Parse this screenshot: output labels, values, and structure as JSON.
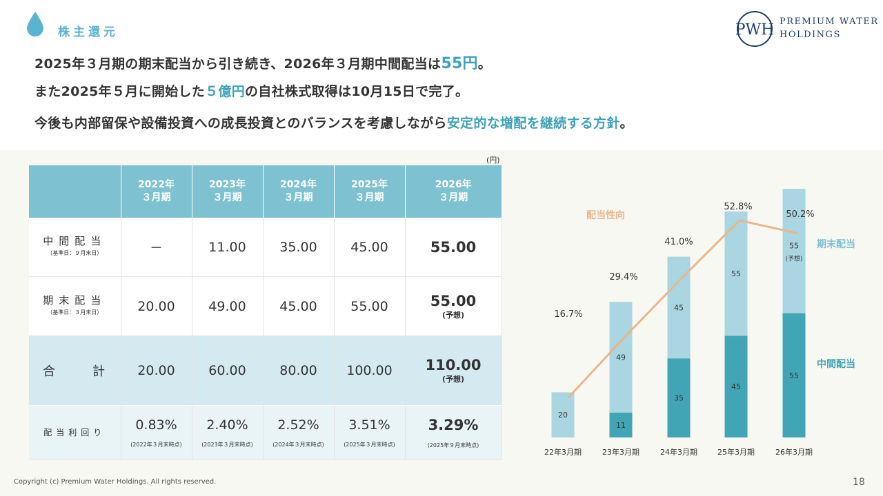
{
  "header": {
    "section_title": "株主還元",
    "logo_line1": "Premium Water",
    "logo_line2": "Holdings"
  },
  "headline": {
    "l1a": "2025年３月期の期末配当から引き続き、2026年３月期中間配当は",
    "l1b": "55円",
    "l1c": "。",
    "l2a": "また2025年５月に開始した",
    "l2b": "５億円",
    "l2c": "の自社株式取得は10月15日で完了。",
    "l3a": "今後も内部留保や設備投資への成長投資とのバランスを考慮しながら",
    "l3b": "安定的な増配を継続する方針",
    "l3c": "。"
  },
  "table": {
    "unit": "(円)",
    "headers": [
      {
        "year": "2022年",
        "term": "３月期"
      },
      {
        "year": "2023年",
        "term": "３月期"
      },
      {
        "year": "2024年",
        "term": "３月期"
      },
      {
        "year": "2025年",
        "term": "３月期"
      },
      {
        "year": "2026年",
        "term": "３月期"
      }
    ],
    "interim_label": "中間配当",
    "interim_note": "（基準日：９月末日）",
    "interim": [
      "－",
      "11.00",
      "35.00",
      "45.00",
      "55.00"
    ],
    "yearend_label": "期末配当",
    "yearend_note": "（基準日：３月末日）",
    "yearend": [
      "20.00",
      "49.00",
      "45.00",
      "55.00",
      "55.00"
    ],
    "forecast": "(予想)",
    "total_label": "合　　　計",
    "total": [
      "20.00",
      "60.00",
      "80.00",
      "100.00",
      "110.00"
    ],
    "yield_label": "配当利回り",
    "yield": [
      "0.83%",
      "2.40%",
      "2.52%",
      "3.51%",
      "3.29%"
    ],
    "yield_notes": [
      "(2022年３月末時点)",
      "(2023年３月末時点)",
      "(2024年３月末時点)",
      "(2025年３月末時点)",
      "(2025年９月末時点)"
    ]
  },
  "chart_data": {
    "type": "bar",
    "stacked": true,
    "categories": [
      "22年3月期",
      "23年3月期",
      "24年3月期",
      "25年3月期",
      "26年3月期"
    ],
    "series": [
      {
        "name": "中間配当",
        "values": [
          0,
          11,
          35,
          45,
          55
        ],
        "color": "#42a5b6"
      },
      {
        "name": "期末配当",
        "values": [
          20,
          49,
          45,
          55,
          55
        ],
        "color": "#a9d6e0"
      }
    ],
    "line": {
      "name": "配当性向",
      "values": [
        16.7,
        29.4,
        41.0,
        52.8,
        50.2
      ],
      "labels": [
        "16.7%",
        "29.4%",
        "41.0%",
        "52.8%",
        "50.2%"
      ],
      "color": "#eab58a"
    },
    "forecast_label": "(予想)",
    "legend_interim": "中間配当",
    "legend_yearend": "期末配当",
    "legend_payout": "配当性向"
  },
  "footer": {
    "copyright": "Copyright (c) Premium Water Holdings. All rights reserved.",
    "page": "18"
  }
}
